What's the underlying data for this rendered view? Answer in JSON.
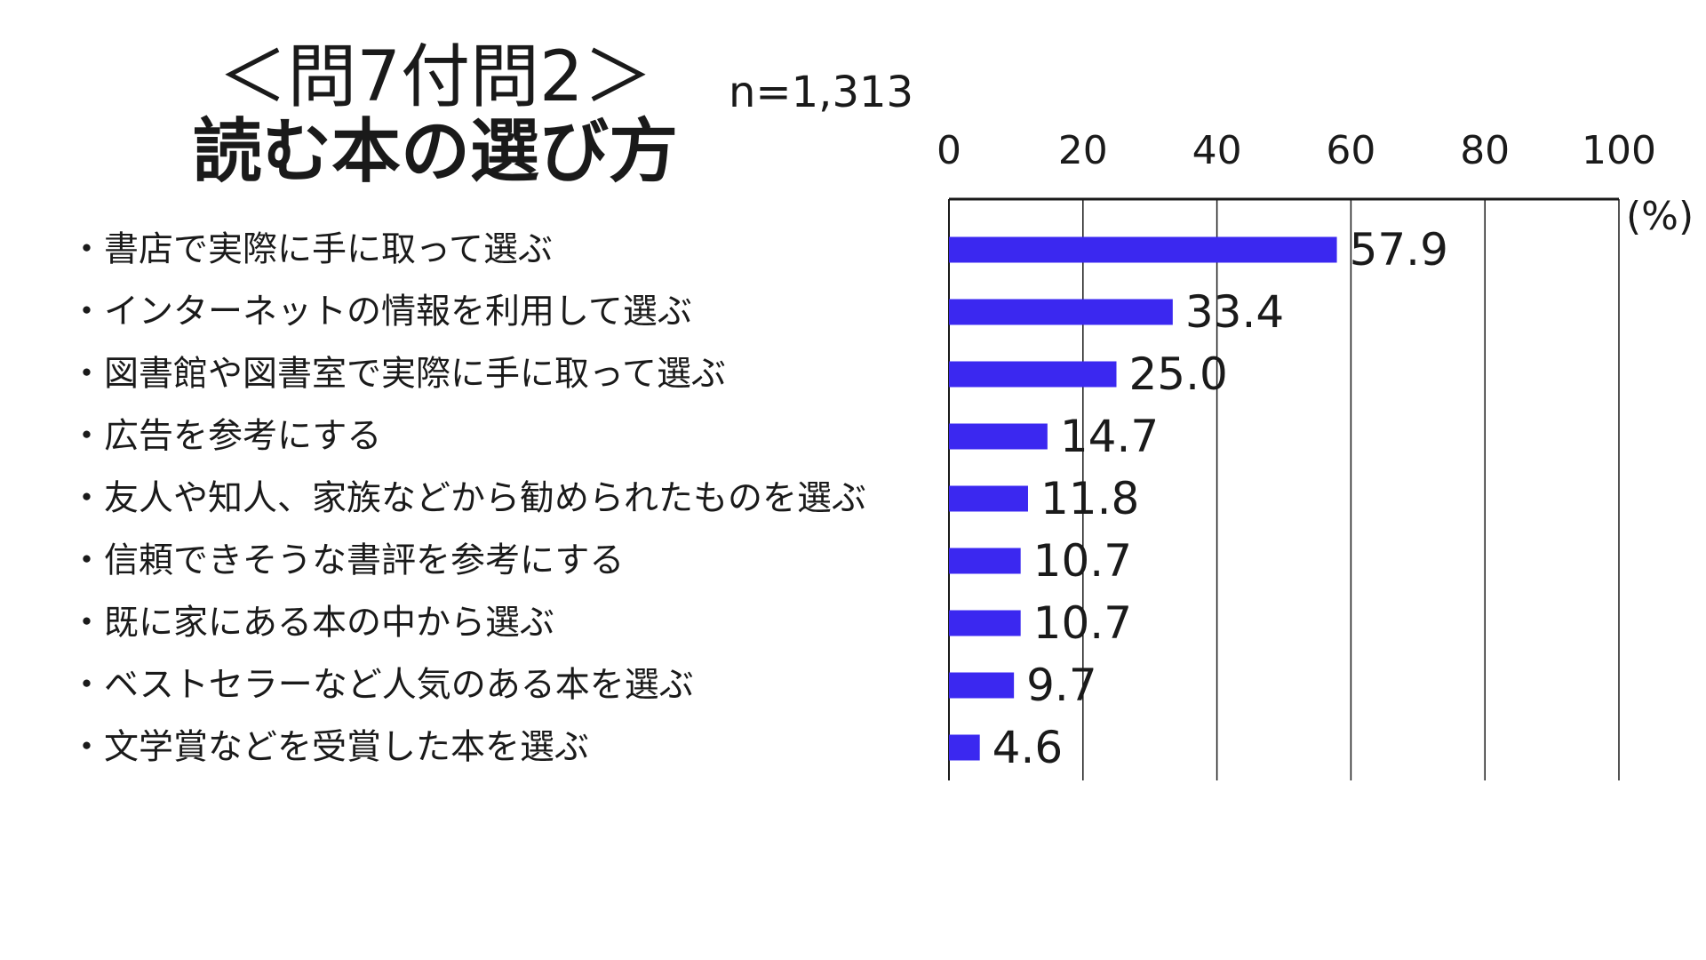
{
  "title_line1": "＜問7付問2＞",
  "title_line2": "読む本の選び方",
  "sample_size": "n=1,313",
  "unit": "(%)",
  "colors": {
    "bar": "#3b28f0",
    "axis": "#1a1a1a",
    "gridline": "#1a1a1a"
  },
  "chart_data": {
    "type": "bar",
    "orientation": "horizontal",
    "title": "＜問7付問2＞ 読む本の選び方",
    "categories": [
      "・書店で実際に手に取って選ぶ",
      "・インターネットの情報を利用して選ぶ",
      "・図書館や図書室で実際に手に取って選ぶ",
      "・広告を参考にする",
      "・友人や知人、家族などから勧められたものを選ぶ",
      "・信頼できそうな書評を参考にする",
      "・既に家にある本の中から選ぶ",
      "・ベストセラーなど人気のある本を選ぶ",
      "・文学賞などを受賞した本を選ぶ"
    ],
    "values": [
      57.9,
      33.4,
      25.0,
      14.7,
      11.8,
      10.7,
      10.7,
      9.7,
      4.6
    ],
    "value_labels": [
      "57.9",
      "33.4",
      "25.0",
      "14.7",
      "11.8",
      "10.7",
      "10.7",
      "9.7",
      "4.6"
    ],
    "xlim": [
      0,
      100
    ],
    "xticks": [
      0,
      20,
      40,
      60,
      80,
      100
    ],
    "xtick_labels": [
      "0",
      "20",
      "40",
      "60",
      "80",
      "100"
    ],
    "axis_position": "top",
    "grid": true,
    "legend": "none"
  }
}
